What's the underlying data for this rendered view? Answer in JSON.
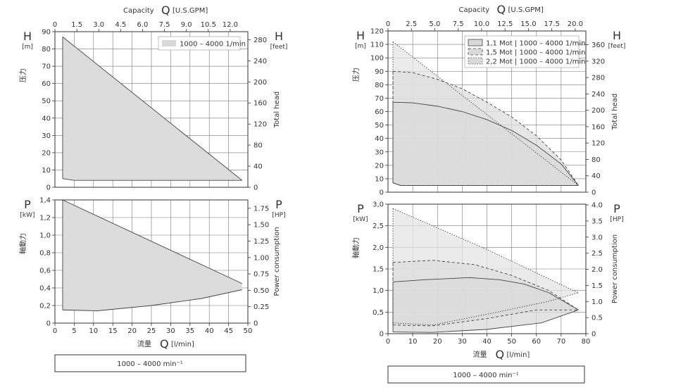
{
  "chart_data": [
    {
      "type": "area",
      "panel": "left-head",
      "top_axis": {
        "label": "Capacity",
        "symbol": "Q",
        "unit": "[U.S.GPM]",
        "ticks": [
          "0",
          "1.5",
          "3.0",
          "4.5",
          "6.0",
          "7.5",
          "9.0",
          "10.5",
          "12.0"
        ]
      },
      "left_axis": {
        "symbol": "H",
        "unit": "[m]",
        "label": "压力",
        "ticks": [
          "0",
          "10",
          "20",
          "30",
          "40",
          "50",
          "60",
          "70",
          "80",
          "90"
        ],
        "ylim": [
          0,
          90
        ]
      },
      "right_axis": {
        "symbol": "H",
        "unit": "[feet]",
        "label": "Total head",
        "ticks": [
          "0",
          "40",
          "80",
          "120",
          "160",
          "200",
          "240",
          "280"
        ]
      },
      "xlim": [
        0,
        50
      ],
      "legend": [
        {
          "name": "1000 – 4000 1/min",
          "style": "solid-fill"
        }
      ],
      "series": [
        {
          "name": "1000 – 4000 1/min",
          "upper": [
            [
              2,
              87
            ],
            [
              48.5,
              4
            ]
          ],
          "lower": [
            [
              2,
              5
            ],
            [
              5,
              4
            ],
            [
              48.5,
              4
            ]
          ]
        }
      ]
    },
    {
      "type": "area",
      "panel": "left-power",
      "bottom_axis": {
        "label": "流量",
        "symbol": "Q",
        "unit": "[l/min]",
        "ticks": [
          "0",
          "5",
          "10",
          "15",
          "20",
          "25",
          "30",
          "35",
          "40",
          "45",
          "50"
        ]
      },
      "left_axis": {
        "symbol": "P",
        "unit": "[kW]",
        "label": "軸動力",
        "ticks": [
          "0",
          "0,2",
          "0,4",
          "0,6",
          "0,8",
          "1,0",
          "1,2",
          "1,4"
        ],
        "ylim": [
          0,
          1.4
        ]
      },
      "right_axis": {
        "symbol": "P",
        "unit": "[HP]",
        "label": "Power consumption",
        "ticks": [
          "0",
          "0.25",
          "0.50",
          "0.75",
          "1.00",
          "1.25",
          "1.50",
          "1.75"
        ]
      },
      "xlim": [
        0,
        50
      ],
      "series": [
        {
          "name": "1000 – 4000 1/min",
          "upper": [
            [
              2,
              1.4
            ],
            [
              48.5,
              0.45
            ]
          ],
          "lower": [
            [
              2,
              0.15
            ],
            [
              11,
              0.14
            ],
            [
              25,
              0.2
            ],
            [
              38,
              0.28
            ],
            [
              48.5,
              0.38
            ]
          ]
        }
      ]
    },
    {
      "type": "area",
      "panel": "right-head",
      "top_axis": {
        "label": "Capacity",
        "symbol": "Q",
        "unit": "[U.S.GPM]",
        "ticks": [
          "0",
          "2.5",
          "5.0",
          "7.5",
          "10.0",
          "12.5",
          "15.0",
          "17.5",
          "20.0"
        ]
      },
      "left_axis": {
        "symbol": "H",
        "unit": "[m]",
        "label": "压力",
        "ticks": [
          "0",
          "10",
          "20",
          "30",
          "40",
          "50",
          "60",
          "70",
          "80",
          "90",
          "100",
          "110",
          "120"
        ],
        "ylim": [
          0,
          120
        ]
      },
      "right_axis": {
        "symbol": "H",
        "unit": "[feet]",
        "label": "Total head",
        "ticks": [
          "0",
          "40",
          "80",
          "120",
          "160",
          "200",
          "240",
          "280",
          "320",
          "360"
        ]
      },
      "xlim": [
        0,
        80
      ],
      "legend": [
        {
          "name": "1,1 Mot | 1000 – 4000 1/min",
          "style": "solid"
        },
        {
          "name": "1,5 Mot | 1000 – 4000 1/min",
          "style": "dashed"
        },
        {
          "name": "2,2 Mot | 1000 – 4000 1/min",
          "style": "dotted"
        }
      ],
      "series": [
        {
          "name": "1,1 Mot | 1000 – 4000 1/min",
          "upper": [
            [
              2,
              67
            ],
            [
              10,
              66.5
            ],
            [
              20,
              64
            ],
            [
              30,
              60
            ],
            [
              40,
              54
            ],
            [
              50,
              46
            ],
            [
              60,
              35
            ],
            [
              70,
              21
            ],
            [
              77,
              5
            ]
          ],
          "lower": [
            [
              2,
              7
            ],
            [
              5,
              5
            ],
            [
              77,
              5
            ]
          ]
        },
        {
          "name": "1,5 Mot | 1000 – 4000 1/min",
          "upper": [
            [
              2,
              90
            ],
            [
              10,
              89
            ],
            [
              20,
              84
            ],
            [
              30,
              77
            ],
            [
              40,
              67
            ],
            [
              50,
              56
            ],
            [
              60,
              42
            ],
            [
              70,
              24
            ],
            [
              77,
              5
            ]
          ],
          "lower": [
            [
              2,
              7
            ],
            [
              5,
              5
            ],
            [
              77,
              5
            ]
          ]
        },
        {
          "name": "2,2 Mot | 1000 – 4000 1/min",
          "upper": [
            [
              2,
              112
            ],
            [
              77,
              5
            ]
          ],
          "lower": [
            [
              2,
              7
            ],
            [
              5,
              5
            ],
            [
              77,
              5
            ]
          ]
        }
      ]
    },
    {
      "type": "area",
      "panel": "right-power",
      "bottom_axis": {
        "label": "流量",
        "symbol": "Q",
        "unit": "[l/min]",
        "ticks": [
          "0",
          "10",
          "20",
          "30",
          "40",
          "50",
          "60",
          "70",
          "80"
        ]
      },
      "left_axis": {
        "symbol": "P",
        "unit": "[kW]",
        "label": "軸動力",
        "ticks": [
          "0",
          "0,5",
          "1,0",
          "1,5",
          "2,0",
          "2,5",
          "3,0"
        ],
        "ylim": [
          0,
          3.0
        ]
      },
      "right_axis": {
        "symbol": "P",
        "unit": "[HP]",
        "label": "Power consumption",
        "ticks": [
          "0",
          "0.5",
          "1.0",
          "1.5",
          "2.0",
          "2.5",
          "3.0",
          "3.5",
          "4.0"
        ]
      },
      "xlim": [
        0,
        80
      ],
      "series": [
        {
          "name": "1,1 Mot | 1000 – 4000 1/min",
          "upper": [
            [
              2,
              1.2
            ],
            [
              15,
              1.25
            ],
            [
              33,
              1.3
            ],
            [
              45,
              1.25
            ],
            [
              55,
              1.15
            ],
            [
              65,
              0.95
            ],
            [
              77,
              0.55
            ]
          ],
          "lower": [
            [
              2,
              0.04
            ],
            [
              18,
              0.03
            ],
            [
              40,
              0.1
            ],
            [
              62,
              0.25
            ],
            [
              77,
              0.55
            ]
          ]
        },
        {
          "name": "1,5 Mot | 1000 – 4000 1/min",
          "upper": [
            [
              2,
              1.65
            ],
            [
              18,
              1.7
            ],
            [
              35,
              1.6
            ],
            [
              50,
              1.35
            ],
            [
              65,
              1.0
            ],
            [
              77,
              0.55
            ]
          ],
          "lower": [
            [
              2,
              0.2
            ],
            [
              18,
              0.18
            ],
            [
              40,
              0.35
            ],
            [
              60,
              0.55
            ],
            [
              77,
              0.55
            ]
          ]
        },
        {
          "name": "2,2 Mot | 1000 – 4000 1/min",
          "upper": [
            [
              2,
              2.9
            ],
            [
              40,
              1.95
            ],
            [
              75,
              1.0
            ],
            [
              77,
              0.95
            ]
          ],
          "lower": [
            [
              2,
              0.25
            ],
            [
              18,
              0.2
            ],
            [
              40,
              0.45
            ],
            [
              65,
              0.75
            ],
            [
              77,
              0.95
            ]
          ]
        }
      ]
    }
  ],
  "footer": {
    "left_label": "1000 – 4000 min⁻¹",
    "right_label": "1000 – 4000 min⁻¹"
  }
}
